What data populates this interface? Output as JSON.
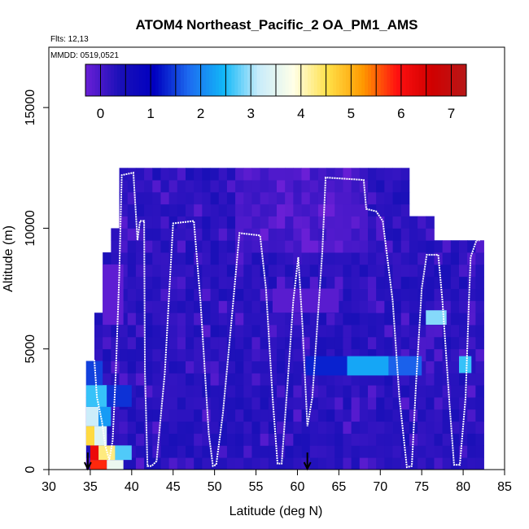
{
  "chart_data": {
    "type": "heatmap",
    "title": "ATOM4 Northeast_Pacific_2 OA_PM1_AMS",
    "subtitle_flights": "Flts: 12,13",
    "subtitle_dates": "MMDD: 0519,0521",
    "xlabel": "Latitude (deg N)",
    "ylabel": "Altitude (m)",
    "xlim": [
      30,
      85
    ],
    "ylim": [
      0,
      17500
    ],
    "x_ticks": [
      "30",
      "35",
      "40",
      "45",
      "50",
      "55",
      "60",
      "65",
      "70",
      "75",
      "80",
      "85"
    ],
    "y_ticks": [
      "0",
      "5000",
      "10000",
      "15000"
    ],
    "colorbar": {
      "range": [
        -0.3,
        7.3
      ],
      "ticks": [
        "0",
        "1",
        "2",
        "3",
        "4",
        "5",
        "6",
        "7"
      ],
      "tick_values": [
        0,
        1,
        2,
        3,
        4,
        5,
        6,
        7
      ],
      "stops": [
        "#6a1fd6",
        "#1a10b8",
        "#0000c0",
        "#1d6cf0",
        "#12b8f8",
        "#c8ecfb",
        "#ffffe8",
        "#ffe048",
        "#ff9a00",
        "#ff1010",
        "#d00000",
        "#b81818"
      ]
    },
    "arrows_at_latitude": [
      34.7,
      61.2
    ],
    "cells": [
      {
        "lat": [
          35,
          37
        ],
        "alt": [
          0,
          400
        ],
        "v": 5.8
      },
      {
        "lat": [
          37,
          39
        ],
        "alt": [
          0,
          400
        ],
        "v": 3.6
      },
      {
        "lat": [
          35,
          36
        ],
        "alt": [
          400,
          1000
        ],
        "v": 6.2
      },
      {
        "lat": [
          36,
          38
        ],
        "alt": [
          400,
          1000
        ],
        "v": 4.3
      },
      {
        "lat": [
          38,
          40
        ],
        "alt": [
          400,
          1000
        ],
        "v": 2.7
      },
      {
        "lat": [
          34.5,
          35.5
        ],
        "alt": [
          1000,
          1800
        ],
        "v": 4.6
      },
      {
        "lat": [
          35.5,
          37
        ],
        "alt": [
          1000,
          1800
        ],
        "v": 3.4
      },
      {
        "lat": [
          34.5,
          36
        ],
        "alt": [
          1800,
          2600
        ],
        "v": 3.2
      },
      {
        "lat": [
          36,
          37.5
        ],
        "alt": [
          1800,
          2600
        ],
        "v": 2.2
      },
      {
        "lat": [
          34.5,
          37
        ],
        "alt": [
          2600,
          3500
        ],
        "v": 2.6
      },
      {
        "lat": [
          37,
          40
        ],
        "alt": [
          2600,
          3500
        ],
        "v": 1.4
      },
      {
        "lat": [
          34.5,
          36.5
        ],
        "alt": [
          3500,
          4500
        ],
        "v": 1.5
      },
      {
        "lat": [
          61,
          66
        ],
        "alt": [
          3900,
          4700
        ],
        "v": 1.3
      },
      {
        "lat": [
          66,
          71
        ],
        "alt": [
          3900,
          4700
        ],
        "v": 2.3
      },
      {
        "lat": [
          71,
          75
        ],
        "alt": [
          3900,
          4700
        ],
        "v": 1.7
      },
      {
        "lat": [
          79.5,
          81
        ],
        "alt": [
          4000,
          4700
        ],
        "v": 2.6
      },
      {
        "lat": [
          75.5,
          78
        ],
        "alt": [
          6000,
          6600
        ],
        "v": 2.9
      },
      {
        "lat": [
          36.5,
          39
        ],
        "alt": [
          6000,
          8500
        ],
        "v": -0.2
      },
      {
        "lat": [
          57,
          65
        ],
        "alt": [
          6500,
          7500
        ],
        "v": -0.15
      }
    ],
    "flight_track": [
      [
        35.0,
        4800
      ],
      [
        35.5,
        4500
      ],
      [
        35.8,
        3000
      ],
      [
        36.4,
        2000
      ],
      [
        36.8,
        1000
      ],
      [
        37.3,
        400
      ],
      [
        37.7,
        1200
      ],
      [
        38.1,
        4200
      ],
      [
        38.5,
        8000
      ],
      [
        38.8,
        12200
      ],
      [
        40.2,
        12300
      ],
      [
        40.7,
        9500
      ],
      [
        41.0,
        10300
      ],
      [
        41.5,
        10300
      ],
      [
        41.6,
        4000
      ],
      [
        41.9,
        150
      ],
      [
        42.4,
        150
      ],
      [
        43.0,
        350
      ],
      [
        44.0,
        4000
      ],
      [
        44.6,
        7800
      ],
      [
        45.0,
        10200
      ],
      [
        47.5,
        10300
      ],
      [
        48.3,
        7000
      ],
      [
        49.3,
        1500
      ],
      [
        49.8,
        150
      ],
      [
        50.2,
        200
      ],
      [
        51.0,
        2300
      ],
      [
        52.0,
        6000
      ],
      [
        53.0,
        9800
      ],
      [
        55.5,
        9700
      ],
      [
        56.2,
        7500
      ],
      [
        57.0,
        3000
      ],
      [
        57.6,
        250
      ],
      [
        58.1,
        250
      ],
      [
        58.8,
        3500
      ],
      [
        59.5,
        7000
      ],
      [
        60.1,
        8800
      ],
      [
        60.6,
        6000
      ],
      [
        61.2,
        1800
      ],
      [
        61.8,
        3000
      ],
      [
        62.4,
        6000
      ],
      [
        63.0,
        9000
      ],
      [
        63.4,
        12100
      ],
      [
        68.0,
        12000
      ],
      [
        68.3,
        10800
      ],
      [
        69.5,
        10700
      ],
      [
        70.3,
        10300
      ],
      [
        71.5,
        7000
      ],
      [
        72.3,
        3000
      ],
      [
        73.2,
        100
      ],
      [
        73.8,
        150
      ],
      [
        74.3,
        3500
      ],
      [
        75.0,
        7500
      ],
      [
        75.6,
        8900
      ],
      [
        77.0,
        8900
      ],
      [
        77.5,
        7000
      ],
      [
        78.4,
        2500
      ],
      [
        78.9,
        200
      ],
      [
        79.6,
        200
      ],
      [
        80.3,
        3000
      ],
      [
        80.7,
        7000
      ],
      [
        80.9,
        8800
      ],
      [
        81.6,
        9500
      ],
      [
        82.0,
        9500
      ]
    ]
  }
}
